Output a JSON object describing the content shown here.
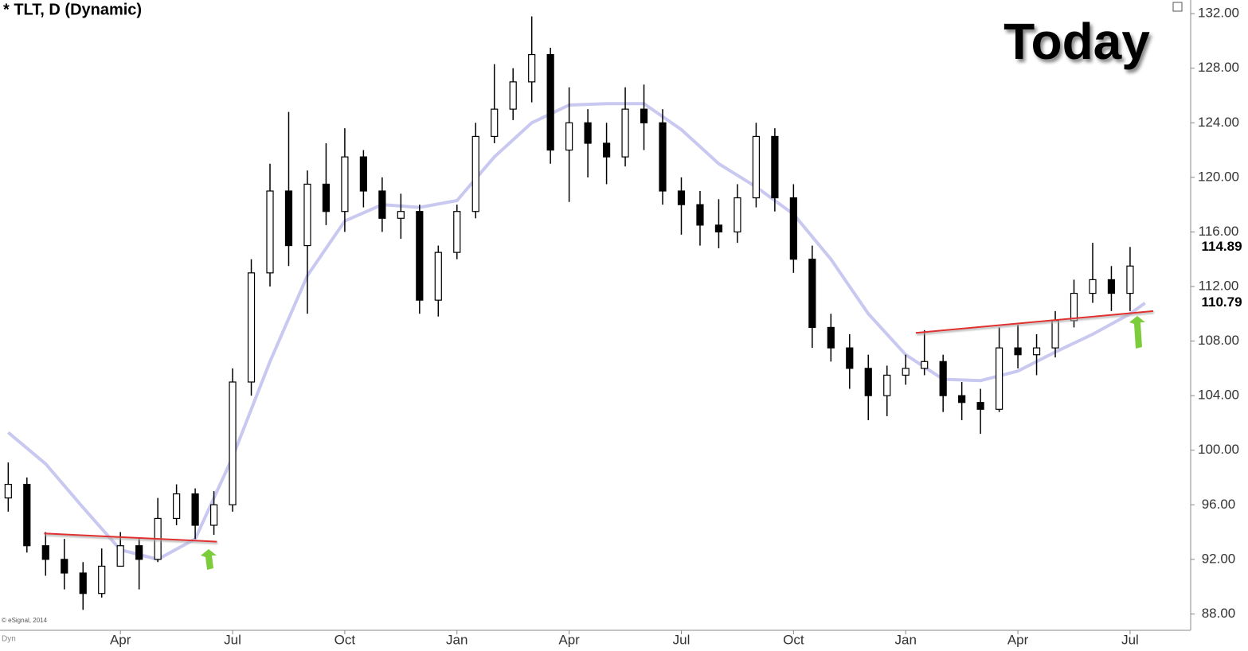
{
  "chart_data": {
    "type": "candlestick",
    "title": "* TLT, D (Dynamic)",
    "annotation": "Today",
    "credit": "© eSignal, 2014",
    "corner_label": "Dyn",
    "x": [
      0,
      0.5,
      1,
      1.5,
      2,
      2.5,
      3,
      3.5,
      4,
      4.5,
      5,
      5.5,
      6,
      6.5,
      7,
      7.5,
      8,
      8.5,
      9,
      9.5,
      10,
      10.5,
      11,
      11.5,
      12,
      12.5,
      13,
      13.5,
      14,
      14.5,
      15,
      15.5,
      16,
      16.5,
      17,
      17.5,
      18,
      18.5,
      19,
      19.5,
      20,
      20.5,
      21,
      21.5,
      22,
      22.5,
      23,
      23.5,
      24,
      24.5,
      25,
      25.5,
      26,
      26.5,
      27,
      27.5,
      28,
      28.5,
      29,
      29.5,
      30
    ],
    "open": [
      96.5,
      97.5,
      93.0,
      92.0,
      91.0,
      89.5,
      91.5,
      93.0,
      92.0,
      95.0,
      96.8,
      94.5,
      96.0,
      105.0,
      113.0,
      119.0,
      115.0,
      119.5,
      117.5,
      121.5,
      119.0,
      117.0,
      117.5,
      111.0,
      114.5,
      117.5,
      123.0,
      125.0,
      127.0,
      129.0,
      122.0,
      124.0,
      122.5,
      121.5,
      125.0,
      124.0,
      119.0,
      118.0,
      116.5,
      116.0,
      118.5,
      123.0,
      118.5,
      114.0,
      109.0,
      107.5,
      106.0,
      104.0,
      105.5,
      106.0,
      106.5,
      104.0,
      103.5,
      103.0,
      107.5,
      107.0,
      107.5,
      109.5,
      111.5,
      112.5,
      111.5
    ],
    "high": [
      99.1,
      98.0,
      94.0,
      93.5,
      91.8,
      92.8,
      94.0,
      93.5,
      96.5,
      97.5,
      97.2,
      97.0,
      106.0,
      114.0,
      121.0,
      124.8,
      120.5,
      122.5,
      123.6,
      122.0,
      120.0,
      118.8,
      118.0,
      115.0,
      118.0,
      124.0,
      128.3,
      128.0,
      131.8,
      129.5,
      126.6,
      125.0,
      124.0,
      126.6,
      126.8,
      125.0,
      120.0,
      119.0,
      118.4,
      119.5,
      124.0,
      123.6,
      119.5,
      115.0,
      110.0,
      108.5,
      107.0,
      106.2,
      107.0,
      108.8,
      107.0,
      105.0,
      104.5,
      109.0,
      109.2,
      108.5,
      110.2,
      112.5,
      115.2,
      113.5,
      114.9
    ],
    "low": [
      95.5,
      92.5,
      90.8,
      89.8,
      88.3,
      89.2,
      91.5,
      89.8,
      91.8,
      94.5,
      93.5,
      93.8,
      95.5,
      104.0,
      112.0,
      113.5,
      110.0,
      116.5,
      116.0,
      117.8,
      116.0,
      115.5,
      110.0,
      109.8,
      114.0,
      117.0,
      122.5,
      124.2,
      125.5,
      121.0,
      118.2,
      120.0,
      119.5,
      120.8,
      122.0,
      118.0,
      115.8,
      115.0,
      114.8,
      115.2,
      117.8,
      117.5,
      113.0,
      107.5,
      106.5,
      104.5,
      102.2,
      102.5,
      104.8,
      105.5,
      102.8,
      102.2,
      101.2,
      102.8,
      106.0,
      105.5,
      106.8,
      109.0,
      110.8,
      110.2,
      110.2
    ],
    "close": [
      97.5,
      93.0,
      92.0,
      91.0,
      89.5,
      91.5,
      93.0,
      92.0,
      95.0,
      96.8,
      94.5,
      96.0,
      105.0,
      113.0,
      119.0,
      115.0,
      119.5,
      117.5,
      121.5,
      119.0,
      117.0,
      117.5,
      111.0,
      114.5,
      117.5,
      123.0,
      125.0,
      127.0,
      129.0,
      122.0,
      124.0,
      122.5,
      121.5,
      125.0,
      124.0,
      119.0,
      118.0,
      116.5,
      116.0,
      118.5,
      123.0,
      118.5,
      114.0,
      109.0,
      107.5,
      106.0,
      104.0,
      105.5,
      106.0,
      106.5,
      104.0,
      103.5,
      103.0,
      107.5,
      107.0,
      107.5,
      109.5,
      111.5,
      112.5,
      111.5,
      113.5
    ],
    "up_color": "#ffffff",
    "down_color": "#000000",
    "moving_average": {
      "color": "#c8c8f0",
      "x": [
        0,
        1,
        2,
        3,
        4,
        5,
        6,
        7,
        8,
        9,
        10,
        11,
        12,
        13,
        14,
        15,
        16,
        17,
        18,
        19,
        20,
        21,
        22,
        23,
        24,
        25,
        26,
        27,
        28,
        29,
        30,
        30.4
      ],
      "values": [
        101.3,
        99.0,
        95.8,
        92.7,
        92.0,
        93.5,
        99.5,
        106.5,
        112.8,
        116.8,
        118.0,
        117.8,
        118.3,
        121.5,
        124.0,
        125.3,
        125.4,
        125.4,
        123.5,
        121.0,
        119.3,
        117.3,
        114.0,
        110.0,
        107.0,
        105.2,
        105.1,
        105.8,
        107.2,
        108.5,
        110.0,
        110.79
      ]
    },
    "trendlines": [
      {
        "color": "#e03030",
        "x": [
          0.96,
          5.58
        ],
        "values": [
          93.9,
          93.3
        ]
      },
      {
        "color": "#e03030",
        "x": [
          24.27,
          30.62
        ],
        "values": [
          108.6,
          110.2
        ]
      }
    ],
    "price_markers": [
      114.89,
      110.79
    ],
    "xlim": [
      -0.22,
      31.62
    ],
    "xticks": [
      {
        "value": 3,
        "label": "Apr"
      },
      {
        "value": 6,
        "label": "Jul"
      },
      {
        "value": 9,
        "label": "Oct"
      },
      {
        "value": 12,
        "label": "Jan"
      },
      {
        "value": 15,
        "label": "Apr"
      },
      {
        "value": 18,
        "label": "Jul"
      },
      {
        "value": 21,
        "label": "Oct"
      },
      {
        "value": 24,
        "label": "Jan"
      },
      {
        "value": 27,
        "label": "Apr"
      },
      {
        "value": 30,
        "label": "Jul"
      }
    ],
    "ylim": [
      86.8,
      133.0
    ],
    "yticks": [
      {
        "value": 88,
        "label": "88.00"
      },
      {
        "value": 92,
        "label": "92.00"
      },
      {
        "value": 96,
        "label": "96.00"
      },
      {
        "value": 100,
        "label": "100.00"
      },
      {
        "value": 104,
        "label": "104.00"
      },
      {
        "value": 108,
        "label": "108.00"
      },
      {
        "value": 112,
        "label": "112.00"
      },
      {
        "value": 116,
        "label": "116.00"
      },
      {
        "value": 120,
        "label": "120.00"
      },
      {
        "value": 124,
        "label": "124.00"
      },
      {
        "value": 128,
        "label": "128.00"
      },
      {
        "value": 132,
        "label": "132.00"
      }
    ]
  }
}
